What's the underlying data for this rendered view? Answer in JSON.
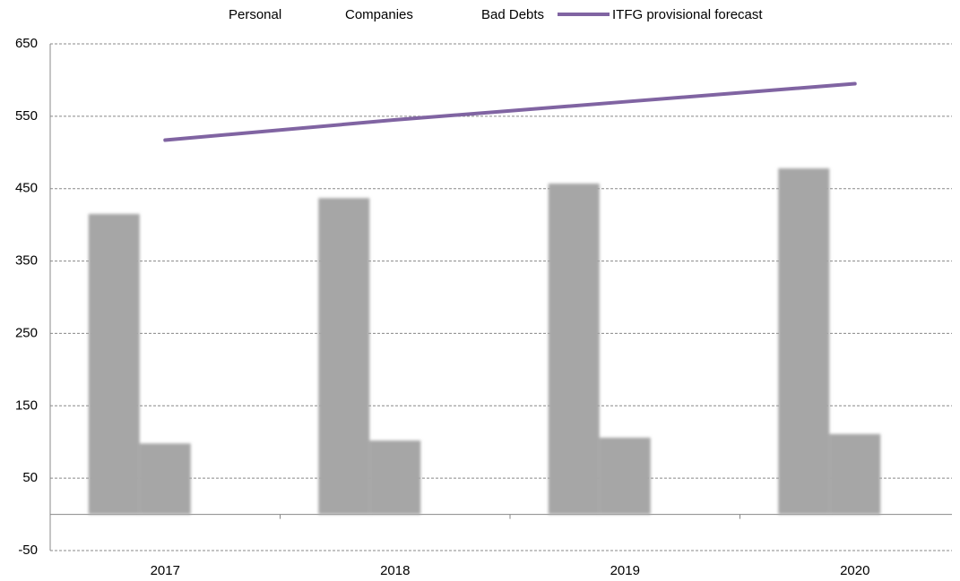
{
  "chart_data": {
    "type": "bar",
    "categories": [
      "2017",
      "2018",
      "2019",
      "2020"
    ],
    "series": [
      {
        "name": "Personal",
        "color": "#a6a6a6",
        "values": [
          415,
          437,
          457,
          478
        ]
      },
      {
        "name": "Companies",
        "color": "#a6a6a6",
        "values": [
          98,
          102,
          106,
          111
        ]
      },
      {
        "name": "Bad Debts",
        "color": "#a6a6a6",
        "values": [
          null,
          null,
          null,
          null
        ]
      },
      {
        "name": "ITFG provisional forecast",
        "type": "line",
        "color": "#8064a2",
        "values": [
          517,
          545,
          570,
          595
        ]
      }
    ],
    "ylim": [
      -50,
      650
    ],
    "yticks": [
      -50,
      50,
      150,
      250,
      350,
      450,
      550,
      650
    ],
    "grid": true
  }
}
